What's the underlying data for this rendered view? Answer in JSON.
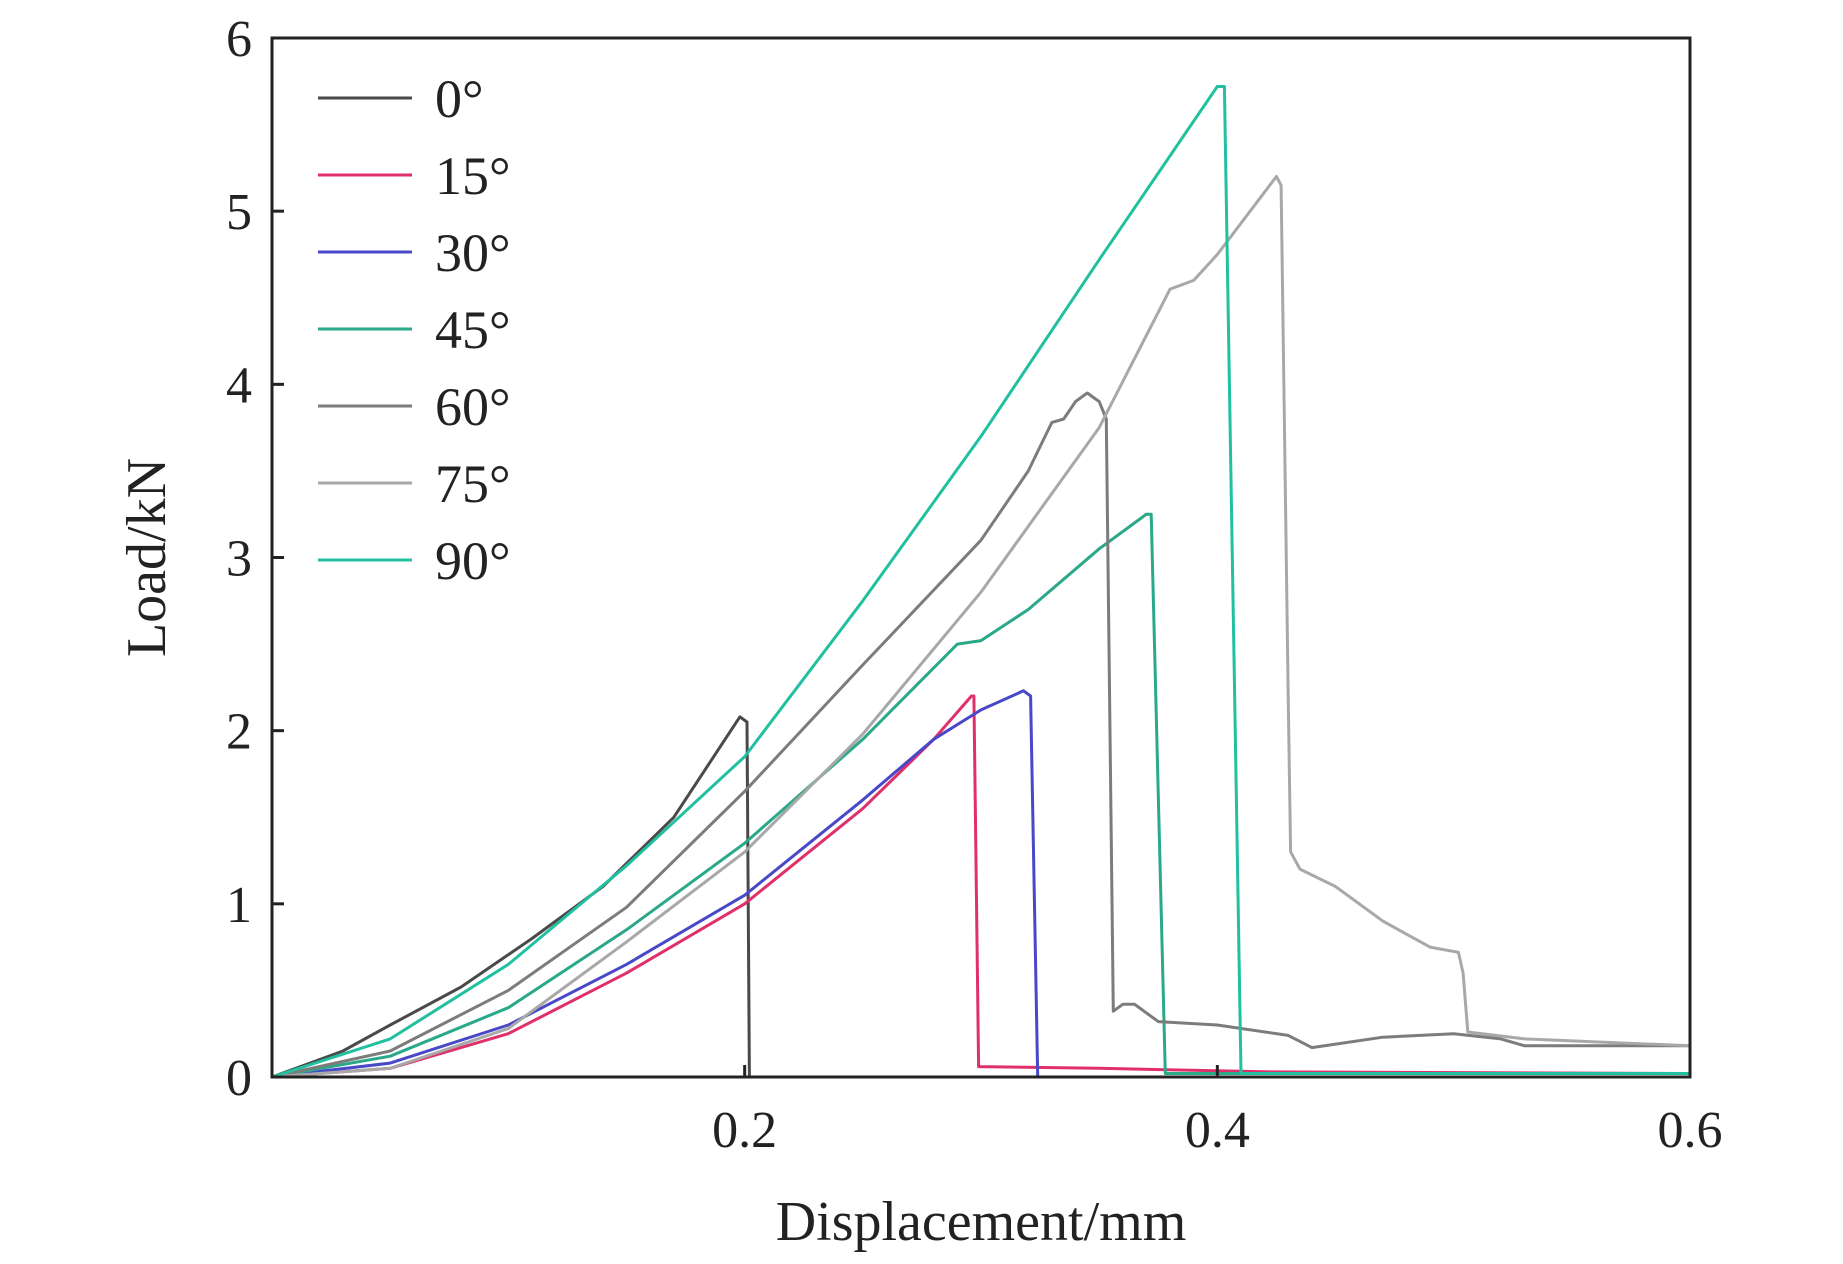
{
  "chart_data": {
    "type": "line",
    "title": "",
    "xlabel": "Displacement/mm",
    "ylabel": "Load/kN",
    "xlim": [
      0,
      0.6
    ],
    "ylim": [
      0,
      6
    ],
    "x_ticks": [
      0.2,
      0.4,
      0.6
    ],
    "x_tick_labels": [
      "0.2",
      "0.4",
      "0.6"
    ],
    "y_ticks": [
      0,
      1,
      2,
      3,
      4,
      5,
      6
    ],
    "y_tick_labels": [
      "0",
      "1",
      "2",
      "3",
      "4",
      "5",
      "6"
    ],
    "grid": false,
    "legend_position": "top-left",
    "series": [
      {
        "name": "0°",
        "color": "#4a4a4a",
        "points": [
          [
            0,
            0
          ],
          [
            0.03,
            0.15
          ],
          [
            0.05,
            0.3
          ],
          [
            0.08,
            0.52
          ],
          [
            0.11,
            0.8
          ],
          [
            0.14,
            1.1
          ],
          [
            0.17,
            1.5
          ],
          [
            0.198,
            2.08
          ],
          [
            0.201,
            2.05
          ],
          [
            0.202,
            0
          ],
          [
            0.215,
            0
          ],
          [
            0.6,
            0
          ]
        ]
      },
      {
        "name": "15°",
        "color": "#e0306a",
        "points": [
          [
            0,
            0
          ],
          [
            0.05,
            0.05
          ],
          [
            0.1,
            0.25
          ],
          [
            0.15,
            0.6
          ],
          [
            0.2,
            1.0
          ],
          [
            0.25,
            1.55
          ],
          [
            0.28,
            1.95
          ],
          [
            0.296,
            2.2
          ],
          [
            0.297,
            2.2
          ],
          [
            0.299,
            0.06
          ],
          [
            0.35,
            0.05
          ],
          [
            0.42,
            0.03
          ],
          [
            0.6,
            0.02
          ]
        ]
      },
      {
        "name": "30°",
        "color": "#4848c8",
        "points": [
          [
            0,
            0
          ],
          [
            0.05,
            0.08
          ],
          [
            0.1,
            0.3
          ],
          [
            0.15,
            0.65
          ],
          [
            0.2,
            1.05
          ],
          [
            0.25,
            1.6
          ],
          [
            0.28,
            1.95
          ],
          [
            0.3,
            2.12
          ],
          [
            0.318,
            2.23
          ],
          [
            0.321,
            2.2
          ],
          [
            0.324,
            0
          ],
          [
            0.6,
            0
          ]
        ]
      },
      {
        "name": "45°",
        "color": "#2aa88a",
        "points": [
          [
            0,
            0
          ],
          [
            0.05,
            0.12
          ],
          [
            0.1,
            0.4
          ],
          [
            0.15,
            0.85
          ],
          [
            0.2,
            1.35
          ],
          [
            0.25,
            1.95
          ],
          [
            0.29,
            2.5
          ],
          [
            0.3,
            2.52
          ],
          [
            0.32,
            2.7
          ],
          [
            0.35,
            3.05
          ],
          [
            0.37,
            3.25
          ],
          [
            0.372,
            3.25
          ],
          [
            0.378,
            0.02
          ],
          [
            0.45,
            0.02
          ],
          [
            0.6,
            0.02
          ]
        ]
      },
      {
        "name": "60°",
        "color": "#7c7c7c",
        "points": [
          [
            0,
            0
          ],
          [
            0.05,
            0.15
          ],
          [
            0.1,
            0.5
          ],
          [
            0.15,
            0.98
          ],
          [
            0.2,
            1.65
          ],
          [
            0.25,
            2.38
          ],
          [
            0.3,
            3.1
          ],
          [
            0.32,
            3.5
          ],
          [
            0.33,
            3.78
          ],
          [
            0.335,
            3.8
          ],
          [
            0.34,
            3.9
          ],
          [
            0.345,
            3.95
          ],
          [
            0.35,
            3.9
          ],
          [
            0.353,
            3.8
          ],
          [
            0.356,
            0.38
          ],
          [
            0.36,
            0.42
          ],
          [
            0.365,
            0.42
          ],
          [
            0.375,
            0.32
          ],
          [
            0.4,
            0.3
          ],
          [
            0.43,
            0.24
          ],
          [
            0.44,
            0.17
          ],
          [
            0.47,
            0.23
          ],
          [
            0.5,
            0.25
          ],
          [
            0.52,
            0.22
          ],
          [
            0.53,
            0.18
          ],
          [
            0.6,
            0.18
          ]
        ]
      },
      {
        "name": "75°",
        "color": "#a8a8a8",
        "points": [
          [
            0,
            0
          ],
          [
            0.05,
            0.05
          ],
          [
            0.1,
            0.28
          ],
          [
            0.15,
            0.78
          ],
          [
            0.2,
            1.3
          ],
          [
            0.25,
            1.98
          ],
          [
            0.3,
            2.8
          ],
          [
            0.35,
            3.75
          ],
          [
            0.38,
            4.55
          ],
          [
            0.39,
            4.6
          ],
          [
            0.4,
            4.75
          ],
          [
            0.425,
            5.2
          ],
          [
            0.427,
            5.15
          ],
          [
            0.43,
            2.2
          ],
          [
            0.431,
            1.3
          ],
          [
            0.435,
            1.2
          ],
          [
            0.45,
            1.1
          ],
          [
            0.47,
            0.9
          ],
          [
            0.49,
            0.75
          ],
          [
            0.502,
            0.72
          ],
          [
            0.504,
            0.6
          ],
          [
            0.506,
            0.26
          ],
          [
            0.53,
            0.22
          ],
          [
            0.6,
            0.18
          ]
        ]
      },
      {
        "name": "90°",
        "color": "#20c0a0",
        "points": [
          [
            0,
            0
          ],
          [
            0.05,
            0.22
          ],
          [
            0.1,
            0.65
          ],
          [
            0.15,
            1.22
          ],
          [
            0.2,
            1.85
          ],
          [
            0.25,
            2.75
          ],
          [
            0.3,
            3.7
          ],
          [
            0.35,
            4.72
          ],
          [
            0.4,
            5.72
          ],
          [
            0.403,
            5.72
          ],
          [
            0.41,
            0.02
          ],
          [
            0.5,
            0.02
          ],
          [
            0.6,
            0.02
          ]
        ]
      }
    ]
  }
}
